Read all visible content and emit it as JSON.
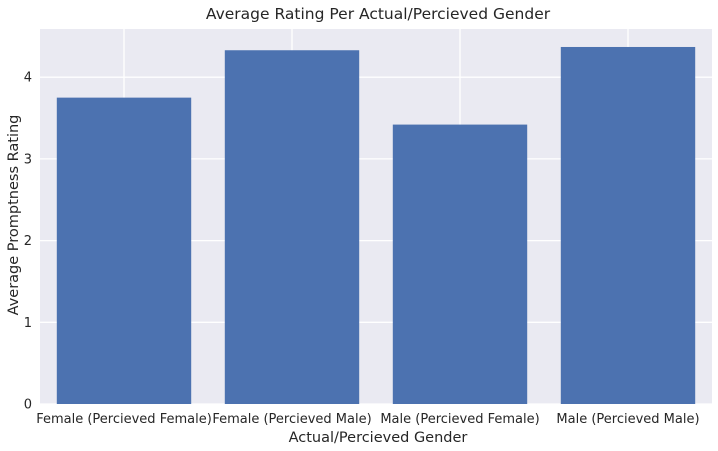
{
  "chart_data": {
    "type": "bar",
    "title": "Average Rating Per Actual/Percieved Gender",
    "xlabel": "Actual/Percieved Gender",
    "ylabel": "Average Promptness Rating",
    "categories": [
      "Female (Percieved Female)",
      "Female (Percieved Male)",
      "Male (Percieved Female)",
      "Male (Percieved Male)"
    ],
    "values": [
      3.75,
      4.33,
      3.42,
      4.37
    ],
    "ylim": [
      0,
      4.59
    ],
    "yticks": [
      "0",
      "1",
      "2",
      "3",
      "4"
    ],
    "grid": true,
    "colors": {
      "bar": "#4c72b0",
      "plot_background": "#eaeaf2",
      "grid": "#ffffff"
    }
  }
}
